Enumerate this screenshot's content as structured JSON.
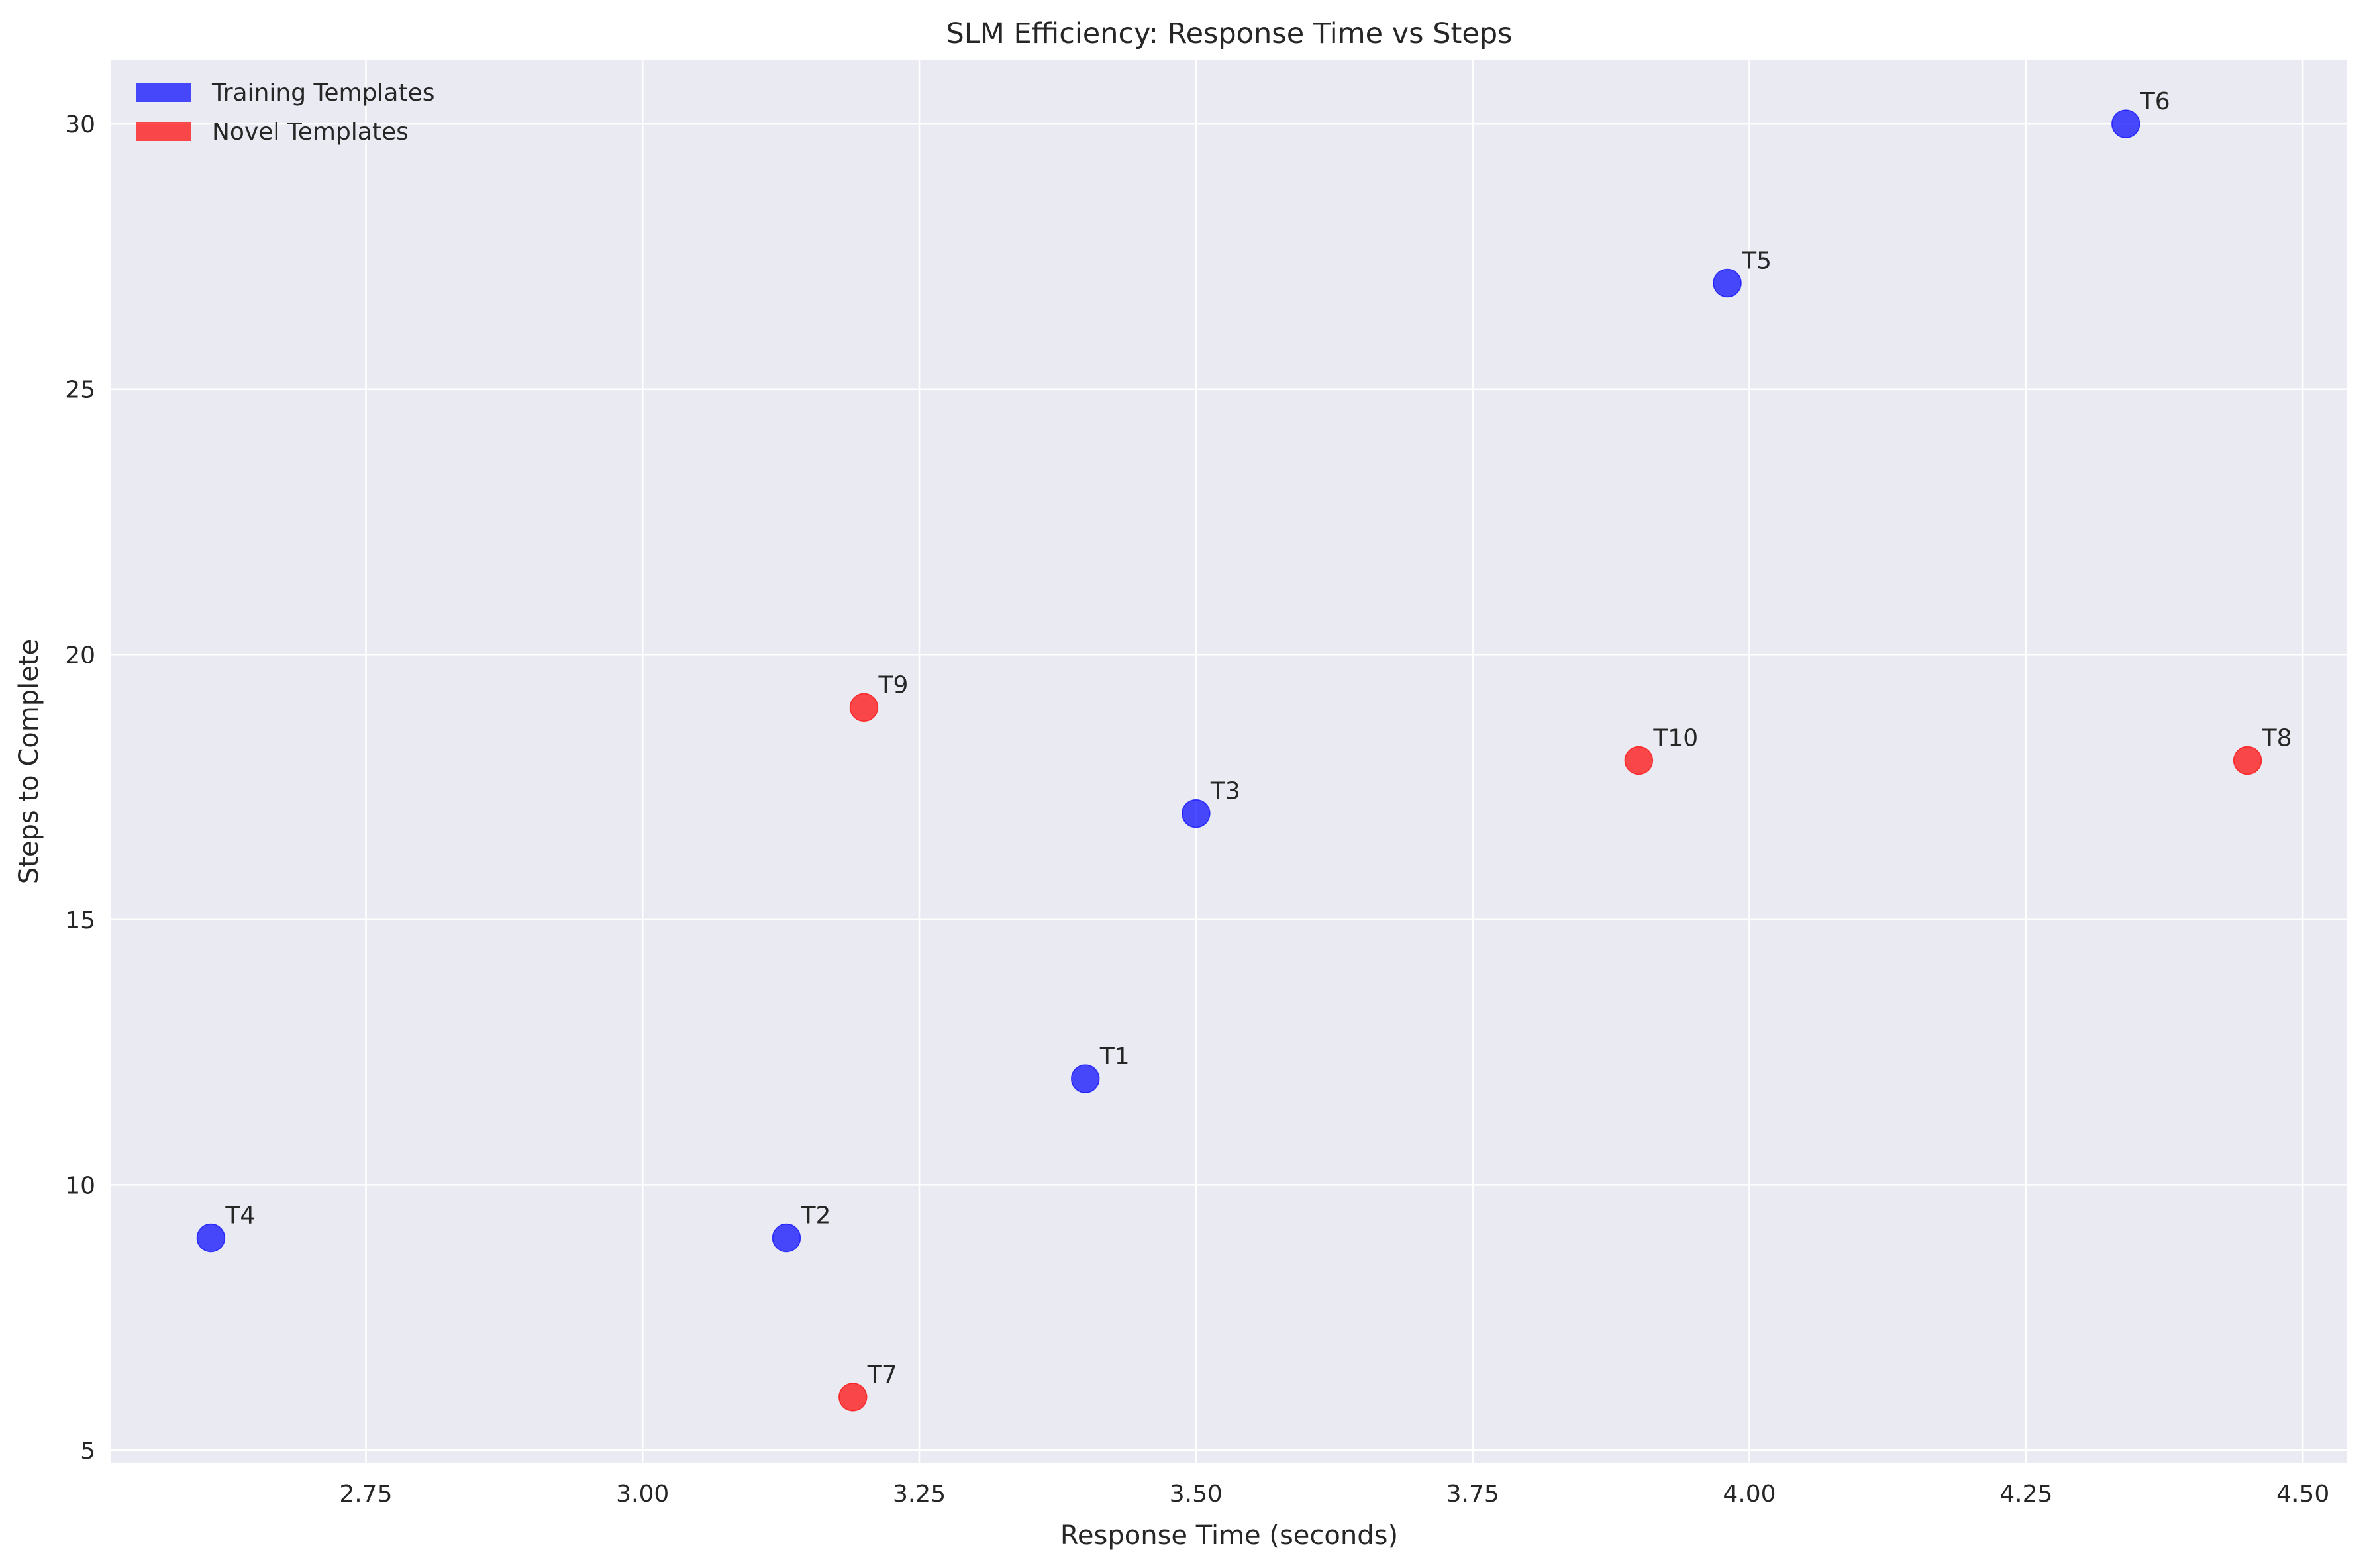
{
  "chart_data": {
    "type": "scatter",
    "title": "SLM Efficiency: Response Time vs Steps",
    "xlabel": "Response Time (seconds)",
    "ylabel": "Steps to Complete",
    "xlim": [
      2.52,
      4.54
    ],
    "ylim": [
      4.75,
      31.2
    ],
    "xticks": [
      2.75,
      3.0,
      3.25,
      3.5,
      3.75,
      4.0,
      4.25,
      4.5
    ],
    "xtick_labels": [
      "2.75",
      "3.00",
      "3.25",
      "3.50",
      "3.75",
      "4.00",
      "4.25",
      "4.50"
    ],
    "yticks": [
      5,
      10,
      15,
      20,
      25,
      30
    ],
    "ytick_labels": [
      "5",
      "10",
      "15",
      "20",
      "25",
      "30"
    ],
    "grid": true,
    "legend_position": "top-left",
    "series": [
      {
        "name": "Training Templates",
        "color": "#0000ff",
        "points": [
          {
            "label": "T1",
            "x": 3.4,
            "y": 12
          },
          {
            "label": "T2",
            "x": 3.13,
            "y": 9
          },
          {
            "label": "T3",
            "x": 3.5,
            "y": 17
          },
          {
            "label": "T4",
            "x": 2.61,
            "y": 9
          },
          {
            "label": "T5",
            "x": 3.98,
            "y": 27
          },
          {
            "label": "T6",
            "x": 4.34,
            "y": 30
          }
        ]
      },
      {
        "name": "Novel Templates",
        "color": "#ff0000",
        "points": [
          {
            "label": "T7",
            "x": 3.19,
            "y": 6
          },
          {
            "label": "T8",
            "x": 4.45,
            "y": 18
          },
          {
            "label": "T9",
            "x": 3.2,
            "y": 19
          },
          {
            "label": "T10",
            "x": 3.9,
            "y": 18
          }
        ]
      }
    ]
  }
}
